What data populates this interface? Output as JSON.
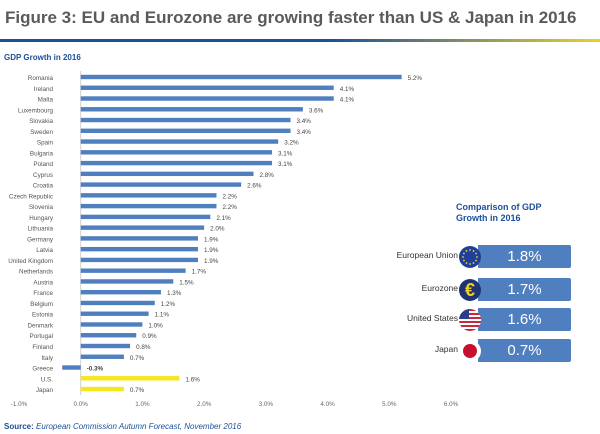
{
  "title": "Figure 3: EU and Eurozone are growing faster than US & Japan in 2016",
  "colors": {
    "bar": "#4f7fbf",
    "highlight": "#f5e61e",
    "accent": "#1d4f9a"
  },
  "chart_data": {
    "type": "bar",
    "orientation": "horizontal",
    "title": "GDP Growth in 2016",
    "categories": [
      "Romania",
      "Ireland",
      "Malta",
      "Luxembourg",
      "Slovakia",
      "Sweden",
      "Spain",
      "Bulgaria",
      "Poland",
      "Cyprus",
      "Croatia",
      "Czech Republic",
      "Slovenia",
      "Hungary",
      "Lithuania",
      "Germany",
      "Latvia",
      "United Kingdom",
      "Netherlands",
      "Austria",
      "France",
      "Belgium",
      "Estonia",
      "Denmark",
      "Portugal",
      "Finland",
      "Italy",
      "Greece",
      "U.S.",
      "Japan"
    ],
    "values": [
      5.2,
      4.1,
      4.1,
      3.6,
      3.4,
      3.4,
      3.2,
      3.1,
      3.1,
      2.8,
      2.6,
      2.2,
      2.2,
      2.1,
      2.0,
      1.9,
      1.9,
      1.9,
      1.7,
      1.5,
      1.3,
      1.2,
      1.1,
      1.0,
      0.9,
      0.8,
      0.7,
      -0.3,
      1.6,
      0.7
    ],
    "data_labels": [
      "5.2%",
      "4.1%",
      "4.1%",
      "3.6%",
      "3.4%",
      "3.4%",
      "3.2%",
      "3.1%",
      "3.1%",
      "2.8%",
      "2.6%",
      "2.2%",
      "2.2%",
      "2.1%",
      "2.0%",
      "1.9%",
      "1.9%",
      "1.9%",
      "1.7%",
      "1.5%",
      "1.3%",
      "1.2%",
      "1.1%",
      "1.0%",
      "0.9%",
      "0.8%",
      "0.7%",
      "-0.3%",
      "1.6%",
      "0.7%"
    ],
    "highlighted": [
      "U.S.",
      "Japan"
    ],
    "xlim": [
      -1.0,
      6.0
    ],
    "xticks": [
      "-1.0%",
      "0.0%",
      "1.0%",
      "2.0%",
      "3.0%",
      "4.0%",
      "5.0%",
      "6.0%"
    ],
    "grid": false
  },
  "comparison": {
    "title_line1": "Comparison of GDP",
    "title_line2": "Growth in 2016",
    "items": [
      {
        "label": "European Union",
        "value": "1.8%",
        "icon": "eu-flag-icon"
      },
      {
        "label": "Eurozone",
        "value": "1.7%",
        "icon": "euro-icon"
      },
      {
        "label": "United States",
        "value": "1.6%",
        "icon": "us-flag-icon"
      },
      {
        "label": "Japan",
        "value": "0.7%",
        "icon": "japan-flag-icon"
      }
    ]
  },
  "source": {
    "label": "Source:",
    "text": "European Commission Autumn Forecast, November 2016"
  }
}
